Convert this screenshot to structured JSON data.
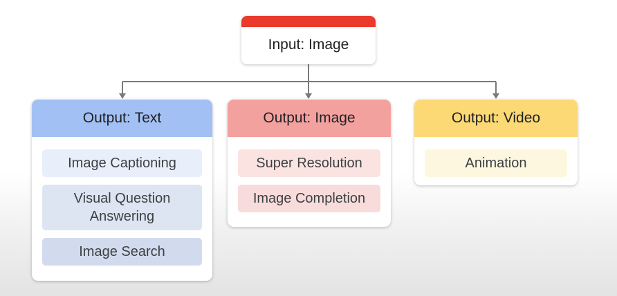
{
  "root": {
    "label": "Input: Image",
    "bar_color": "#ea3a2c"
  },
  "branches": [
    {
      "prefix": "Output:",
      "type": "Text",
      "header_color": "#a2c0f4",
      "items": [
        "Image Captioning",
        "Visual Question Answering",
        "Image Search"
      ]
    },
    {
      "prefix": "Output:",
      "type": "Image",
      "header_color": "#f3a19e",
      "items": [
        "Super Resolution",
        "Image Completion"
      ]
    },
    {
      "prefix": "Output:",
      "type": "Video",
      "header_color": "#fcd975",
      "items": [
        "Animation"
      ]
    }
  ],
  "connector_color": "#7a7a7a"
}
